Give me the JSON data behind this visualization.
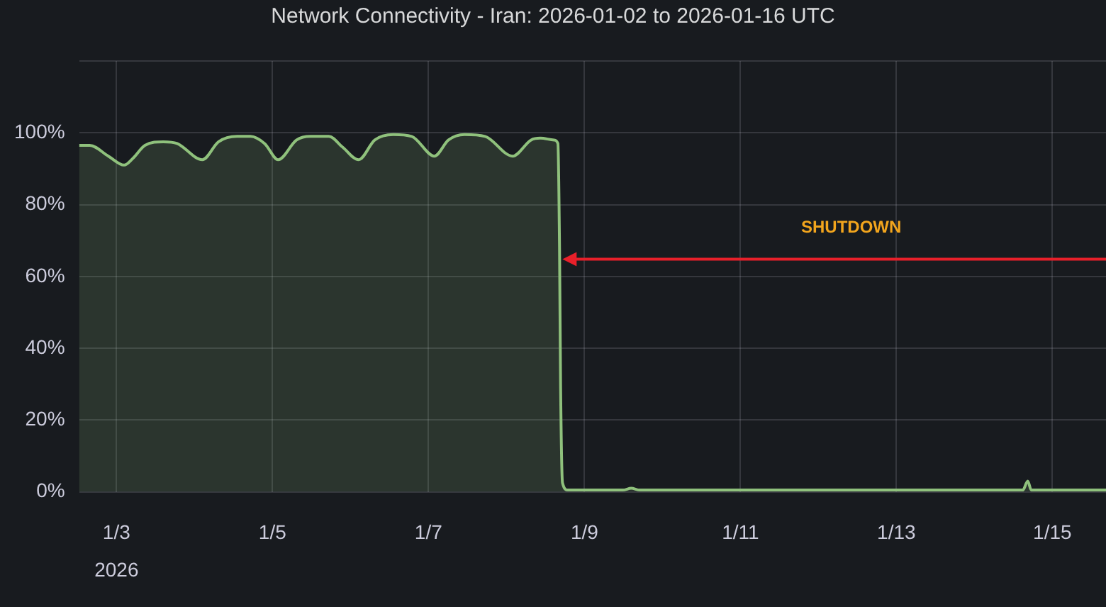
{
  "chart_data": {
    "type": "area",
    "title": "Network Connectivity - Iran: 2026-01-02 to 2026-01-16 UTC",
    "x": [
      "2026-01-02T12:30",
      "2026-01-02T15:45",
      "2026-01-02T21:30",
      "2026-01-03T02:20",
      "2026-01-03T05:10",
      "2026-01-03T08:45",
      "2026-01-03T14:25",
      "2026-01-03T18:40",
      "2026-01-04T02:25",
      "2026-01-04T07:25",
      "2026-01-04T13:05",
      "2026-01-04T17:15",
      "2026-01-04T21:35",
      "2026-01-05T01:45",
      "2026-01-05T07:25",
      "2026-01-05T11:40",
      "2026-01-05T17:20",
      "2026-01-05T21:35",
      "2026-01-06T02:30",
      "2026-01-06T07:30",
      "2026-01-06T13:10",
      "2026-01-06T18:50",
      "2026-01-07T01:50",
      "2026-01-07T06:10",
      "2026-01-07T11:05",
      "2026-01-07T17:25",
      "2026-01-08T01:55",
      "2026-01-08T07:35",
      "2026-01-08T10:25",
      "2026-01-08T14:40",
      "2026-01-08T15:50",
      "2026-01-08T16:20",
      "2026-01-08T16:40",
      "2026-01-08T17:15",
      "2026-01-08T18:55",
      "2026-01-09T11:50",
      "2026-01-09T14:25",
      "2026-01-09T17:00",
      "2026-01-12T12:00",
      "2026-01-14T14:55",
      "2026-01-14T16:25",
      "2026-01-14T17:30",
      "2026-01-15T16:30"
    ],
    "values": [
      96.5,
      96.5,
      93.5,
      91,
      93,
      96.5,
      97.5,
      97,
      92.5,
      97.5,
      99,
      99,
      97,
      92.5,
      98,
      99,
      99,
      96,
      92.5,
      98,
      99.5,
      99,
      93.5,
      98,
      99.5,
      99,
      93.5,
      98,
      98.5,
      98,
      97,
      68,
      29,
      2.5,
      0.5,
      0.5,
      1,
      0.5,
      0.5,
      0.5,
      3,
      0.5,
      0.5
    ],
    "color": "#8fc17c",
    "xlim": [
      "2026-01-02T12:30",
      "2026-01-15T16:30"
    ],
    "xticks": [
      {
        "value": "2026-01-03",
        "label": "1/3\n2026"
      },
      {
        "value": "2026-01-05",
        "label": "1/5"
      },
      {
        "value": "2026-01-07",
        "label": "1/7"
      },
      {
        "value": "2026-01-09",
        "label": "1/9"
      },
      {
        "value": "2026-01-11",
        "label": "1/11"
      },
      {
        "value": "2026-01-13",
        "label": "1/13"
      },
      {
        "value": "2026-01-15",
        "label": "1/15"
      }
    ],
    "ylim": [
      0,
      120
    ],
    "yticks": [
      {
        "value": 0,
        "label": "0%"
      },
      {
        "value": 20,
        "label": "20%"
      },
      {
        "value": 40,
        "label": "40%"
      },
      {
        "value": 60,
        "label": "60%"
      },
      {
        "value": 80,
        "label": "80%"
      },
      {
        "value": 100,
        "label": "100%"
      },
      {
        "value": 120,
        "label": null
      }
    ],
    "grid": true,
    "annotations": [
      "SHUTDOWN"
    ]
  }
}
